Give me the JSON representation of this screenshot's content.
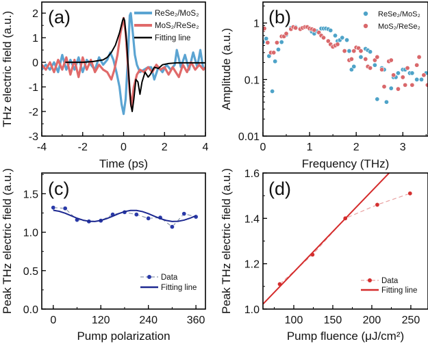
{
  "chart_data": [
    {
      "type": "line",
      "panel_label": "(a)",
      "xlabel": "Time (ps)",
      "ylabel": "THz electric field (a.u.)",
      "xlim": [
        -4,
        4
      ],
      "ylim": [
        -3,
        2.45
      ],
      "yscale": "linear",
      "xticks": {
        "values": [
          -4,
          -2,
          0,
          2,
          4
        ],
        "labels": [
          "-4",
          "-2",
          "0",
          "2",
          "4"
        ]
      },
      "yticks": {
        "values": [
          -3,
          -2,
          -1,
          0,
          1,
          2
        ],
        "labels": [
          "-3",
          "-2",
          "-1",
          "0",
          "1",
          "2"
        ]
      },
      "legend_position": "top-right",
      "series": [
        {
          "name": "ReSe₂/MoS₂",
          "style": "line",
          "color": "#5ba4d2",
          "x": [
            -4,
            -3.8,
            -3.6,
            -3.4,
            -3.2,
            -3.0,
            -2.8,
            -2.6,
            -2.4,
            -2.2,
            -2.0,
            -1.8,
            -1.6,
            -1.4,
            -1.2,
            -1.0,
            -0.8,
            -0.65,
            -0.5,
            -0.35,
            -0.2,
            -0.1,
            0,
            0.1,
            0.2,
            0.3,
            0.35,
            0.45,
            0.55,
            0.65,
            0.8,
            1.0,
            1.2,
            1.35,
            1.5,
            1.7,
            1.9,
            2.1,
            2.3,
            2.5,
            2.6,
            2.8,
            3.0,
            3.2,
            3.4,
            3.6,
            3.75,
            3.9,
            4
          ],
          "y": [
            -0.3,
            -0.1,
            -0.3,
            0.0,
            -0.4,
            0.3,
            -0.3,
            0.1,
            -0.3,
            0.2,
            -0.4,
            0.1,
            -0.1,
            -0.3,
            0.2,
            -0.1,
            0.1,
            0.4,
            0.1,
            -0.4,
            -1.0,
            -1.7,
            -2.1,
            -1.5,
            0.0,
            1.9,
            2.0,
            1.2,
            0.3,
            -0.1,
            -0.4,
            -0.3,
            -0.2,
            -0.2,
            -0.7,
            -0.2,
            -0.4,
            -0.1,
            -0.3,
            -0.1,
            0.5,
            -0.2,
            0.3,
            -0.3,
            0.4,
            -0.2,
            0.5,
            -0.3,
            -0.2
          ]
        },
        {
          "name": "MoS₂/ReSe₂",
          "style": "line",
          "color": "#e06a6a",
          "x": [
            -4,
            -3.8,
            -3.6,
            -3.4,
            -3.2,
            -3.0,
            -2.8,
            -2.6,
            -2.4,
            -2.2,
            -2.0,
            -1.8,
            -1.6,
            -1.4,
            -1.2,
            -1.0,
            -0.8,
            -0.6,
            -0.45,
            -0.3,
            -0.15,
            0,
            0.1,
            0.2,
            0.3,
            0.38,
            0.5,
            0.65,
            0.8,
            1.0,
            1.2,
            1.4,
            1.6,
            1.8,
            2.0,
            2.2,
            2.4,
            2.7,
            2.9,
            3.1,
            3.3,
            3.5,
            3.7,
            3.9,
            4
          ],
          "y": [
            -0.1,
            -0.3,
            0.0,
            -0.4,
            0.1,
            -0.3,
            0.2,
            -0.5,
            0.1,
            -0.6,
            0.2,
            -0.3,
            0.1,
            -0.4,
            -0.1,
            -0.3,
            -0.4,
            -0.7,
            -0.3,
            0.3,
            1.2,
            1.8,
            1.2,
            0.0,
            -1.2,
            -1.8,
            -1.0,
            -0.5,
            -0.3,
            -0.4,
            -0.2,
            -0.4,
            -0.1,
            -0.3,
            -0.2,
            -0.5,
            -0.2,
            -0.6,
            -0.1,
            -0.4,
            0.0,
            -0.3,
            -0.1,
            -0.3,
            -0.2
          ]
        },
        {
          "name": "Fitting line",
          "style": "line",
          "color": "#000000",
          "x": [
            -2.85,
            -2.0,
            -1.5,
            -1.0,
            -0.8,
            -0.6,
            -0.4,
            -0.2,
            -0.05,
            0,
            0.05,
            0.15,
            0.25,
            0.35,
            0.42,
            0.5,
            0.6,
            0.7,
            0.8,
            0.9,
            1.05,
            1.2,
            1.3,
            1.5,
            1.7,
            1.9,
            2.2,
            2.6,
            4
          ],
          "y": [
            0,
            0,
            0.03,
            0.1,
            0.2,
            0.4,
            0.7,
            1.2,
            1.7,
            1.8,
            1.7,
            0.8,
            -0.5,
            -1.7,
            -2.0,
            -1.5,
            -0.7,
            -0.8,
            -1.3,
            -0.8,
            -0.4,
            -0.6,
            -0.5,
            -0.2,
            -0.25,
            -0.1,
            -0.05,
            -0.02,
            -0.02
          ]
        }
      ]
    },
    {
      "type": "scatter",
      "panel_label": "(b)",
      "xlabel": "Frequency (THz)",
      "ylabel": "Amplitude (a.u.)",
      "xlim": [
        0,
        3.54
      ],
      "ylim": [
        0.01,
        2.35
      ],
      "yscale": "log",
      "xticks": {
        "values": [
          0,
          1,
          2,
          3
        ],
        "labels": [
          "0",
          "1",
          "2",
          "3"
        ]
      },
      "yticks": {
        "values": [
          0.01,
          0.1,
          1
        ],
        "labels": [
          "0.01",
          "0.1",
          "1"
        ]
      },
      "legend_position": "top-right",
      "series": [
        {
          "name": "ReSe₂/MoS₂",
          "style": "scatter",
          "color": "#4ea3c8",
          "x": [
            0.0,
            0.07,
            0.13,
            0.2,
            0.26,
            0.33,
            0.4,
            0.5,
            0.6,
            0.7,
            0.8,
            0.9,
            1.0,
            1.05,
            1.1,
            1.15,
            1.25,
            1.3,
            1.35,
            1.4,
            1.45,
            1.55,
            1.6,
            1.65,
            1.7,
            1.8,
            1.85,
            1.9,
            1.95,
            2.1,
            2.2,
            2.25,
            2.3,
            2.4,
            2.45,
            2.55,
            2.6,
            2.65,
            2.75,
            2.8,
            2.85,
            2.9,
            3.0,
            3.05,
            3.15,
            3.2,
            3.3,
            3.4,
            3.5
          ],
          "y": [
            0.46,
            0.53,
            0.26,
            0.062,
            0.21,
            0.34,
            0.46,
            0.62,
            0.82,
            0.85,
            0.8,
            0.85,
            0.78,
            0.7,
            0.65,
            0.72,
            0.8,
            0.8,
            0.8,
            0.78,
            0.74,
            0.6,
            0.48,
            0.5,
            0.55,
            0.5,
            0.32,
            0.15,
            0.17,
            0.25,
            0.35,
            0.33,
            0.31,
            0.18,
            0.045,
            0.16,
            0.15,
            0.04,
            0.07,
            0.11,
            0.11,
            0.13,
            0.15,
            0.15,
            0.13,
            0.13,
            0.1,
            0.1,
            0.13
          ]
        },
        {
          "name": "MoS₂/ReSe₂",
          "style": "scatter",
          "color": "#d9686b",
          "x": [
            0.0,
            0.03,
            0.1,
            0.17,
            0.23,
            0.3,
            0.4,
            0.45,
            0.5,
            0.6,
            0.65,
            0.7,
            0.8,
            0.85,
            0.9,
            0.95,
            1.0,
            1.05,
            1.1,
            1.2,
            1.25,
            1.3,
            1.4,
            1.45,
            1.5,
            1.55,
            1.6,
            1.75,
            1.85,
            1.9,
            1.95,
            2.0,
            2.05,
            2.1,
            2.2,
            2.25,
            2.3,
            2.4,
            2.45,
            2.55,
            2.6,
            2.7,
            2.75,
            2.8,
            2.9,
            3.0,
            3.05,
            3.1,
            3.2,
            3.3,
            3.35,
            3.45,
            3.53
          ],
          "y": [
            0.75,
            0.8,
            0.45,
            0.3,
            0.3,
            0.45,
            0.58,
            0.58,
            0.65,
            0.78,
            0.85,
            0.82,
            0.78,
            0.82,
            0.85,
            0.85,
            0.8,
            0.78,
            0.75,
            0.68,
            0.6,
            0.55,
            0.48,
            0.42,
            0.38,
            0.4,
            0.42,
            0.32,
            0.22,
            0.23,
            0.32,
            0.37,
            0.36,
            0.32,
            0.23,
            0.17,
            0.16,
            0.22,
            0.25,
            0.15,
            0.075,
            0.21,
            0.22,
            0.12,
            0.068,
            0.11,
            0.08,
            0.16,
            0.08,
            0.18,
            0.25,
            0.12,
            0.08
          ]
        }
      ]
    },
    {
      "type": "line",
      "panel_label": "(c)",
      "xlabel": "Pump polarization",
      "ylabel": "Peak THz electric field (a.u.)",
      "xlim": [
        -29,
        384
      ],
      "ylim": [
        0,
        1.77
      ],
      "yscale": "linear",
      "xticks": {
        "values": [
          0,
          120,
          240,
          360
        ],
        "labels": [
          "0",
          "120",
          "240",
          "360"
        ]
      },
      "yticks": {
        "values": [
          0,
          0.5,
          1.0,
          1.5
        ],
        "labels": [
          "0.0",
          "0.5",
          "1.0",
          "1.5"
        ]
      },
      "legend_position": "bottom-right",
      "series": [
        {
          "name": "Data",
          "style": "line+markers",
          "dashed": true,
          "color": "#2a3aa8",
          "line_color": "#8a96aa",
          "x": [
            0,
            30,
            60,
            90,
            120,
            150,
            180,
            210,
            240,
            270,
            300,
            330,
            360
          ],
          "y": [
            1.32,
            1.31,
            1.16,
            1.14,
            1.15,
            1.23,
            1.26,
            1.23,
            1.18,
            1.19,
            1.07,
            1.24,
            1.2
          ]
        },
        {
          "name": "Fitting line",
          "style": "line",
          "color": "#1c2890",
          "x": [
            0,
            15,
            30,
            45,
            60,
            75,
            90,
            105,
            120,
            135,
            150,
            165,
            180,
            195,
            210,
            225,
            240,
            255,
            270,
            285,
            300,
            315,
            330,
            345,
            360
          ],
          "y": [
            1.285,
            1.272,
            1.247,
            1.215,
            1.182,
            1.157,
            1.142,
            1.14,
            1.153,
            1.177,
            1.208,
            1.241,
            1.268,
            1.283,
            1.283,
            1.268,
            1.241,
            1.208,
            1.177,
            1.153,
            1.14,
            1.142,
            1.157,
            1.182,
            1.215
          ]
        }
      ]
    },
    {
      "type": "line",
      "panel_label": "(d)",
      "xlabel": "Pump fluence (μJ/cm²)",
      "ylabel": "Peak THz electric field (a.u.)",
      "xlim": [
        60.5,
        272
      ],
      "ylim": [
        1.0,
        1.6
      ],
      "yscale": "linear",
      "xticks": {
        "values": [
          100,
          150,
          200,
          250
        ],
        "labels": [
          "100",
          "150",
          "200",
          "250"
        ]
      },
      "yticks": {
        "values": [
          1.0,
          1.2,
          1.4,
          1.6
        ],
        "labels": [
          "1.0",
          "1.2",
          "1.4",
          "1.6"
        ]
      },
      "legend_position": "bottom-right",
      "series": [
        {
          "name": "Data",
          "style": "line+markers",
          "dashed": true,
          "color": "#d43030",
          "line_color": "#e8a0a0",
          "x": [
            82,
            124,
            166,
            207,
            249
          ],
          "y": [
            1.11,
            1.24,
            1.4,
            1.46,
            1.51
          ]
        },
        {
          "name": "Fitting line",
          "style": "line",
          "color": "#d42a2a",
          "x": [
            60.5,
            225
          ],
          "y": [
            1.022,
            1.61
          ]
        }
      ]
    }
  ]
}
